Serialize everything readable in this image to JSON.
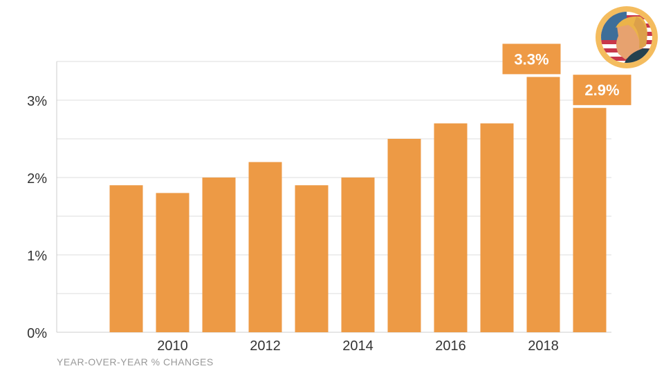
{
  "chart_data": {
    "type": "bar",
    "categories": [
      "2009",
      "2010",
      "2011",
      "2012",
      "2013",
      "2014",
      "2015",
      "2016",
      "2017",
      "2018",
      "2019"
    ],
    "values": [
      1.9,
      1.8,
      2.0,
      2.2,
      1.9,
      2.0,
      2.5,
      2.7,
      2.7,
      3.3,
      2.9
    ],
    "x_tick_labels": [
      "2010",
      "2012",
      "2014",
      "2016",
      "2018"
    ],
    "y_tick_labels": [
      "0%",
      "1%",
      "2%",
      "3%"
    ],
    "ylim": [
      0,
      3.5
    ],
    "grid": true,
    "data_labels": [
      {
        "category": "2018",
        "text": "3.3%"
      },
      {
        "category": "2019",
        "text": "2.9%"
      }
    ],
    "xlabel": "YEAR-OVER-YEAR % CHANGES",
    "bar_color": "#ED9A45",
    "label_color": "#EE9A45"
  },
  "icon": "trump-portrait-flag-badge-icon"
}
